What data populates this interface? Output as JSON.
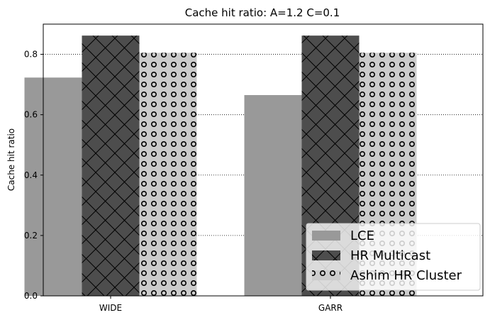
{
  "chart_data": {
    "type": "bar",
    "title": "Cache hit ratio: A=1.2 C=0.1",
    "xlabel": "",
    "ylabel": "Cache hit ratio",
    "categories": [
      "WIDE",
      "GARR"
    ],
    "series": [
      {
        "name": "LCE",
        "values": [
          0.723,
          0.665
        ],
        "color": "#999999",
        "hatch": "none"
      },
      {
        "name": "HR Multicast",
        "values": [
          0.862,
          0.862
        ],
        "color": "#4d4d4d",
        "hatch": "crosshatch"
      },
      {
        "name": "Ashim HR Cluster",
        "values": [
          0.805,
          0.805
        ],
        "color": "#cccccc",
        "hatch": "circles"
      }
    ],
    "ylim": [
      0,
      0.9
    ],
    "yticks": [
      "0.0",
      "0.2",
      "0.4",
      "0.6",
      "0.8"
    ],
    "grid": "horizontal-dotted",
    "legend_position": "bottom-right"
  }
}
